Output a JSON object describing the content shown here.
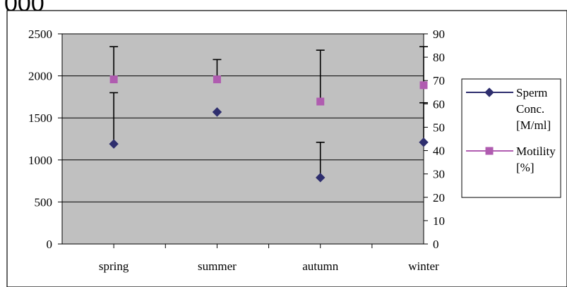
{
  "header_fragment": "000",
  "chart_data": {
    "type": "line",
    "categories": [
      "spring",
      "summer",
      "autumn",
      "winter"
    ],
    "series": [
      {
        "name": "Sperm Conc. [M/ml]",
        "legend_lines": [
          "Sperm",
          "Conc.",
          "[M/ml]"
        ],
        "axis": "left",
        "color": "#2e2e6e",
        "marker": "diamond",
        "values": [
          1190,
          1570,
          790,
          1210
        ],
        "error_upper": [
          1800,
          null,
          1210,
          1680
        ]
      },
      {
        "name": "Motility [%]",
        "legend_lines": [
          "Motility",
          "[%]"
        ],
        "axis": "right",
        "color": "#b05cb0",
        "marker": "square",
        "values": [
          70.5,
          70.5,
          61,
          68
        ],
        "error_upper": [
          84.5,
          79,
          83,
          84.5
        ]
      }
    ],
    "y_left": {
      "min": 0,
      "max": 2500,
      "ticks": [
        0,
        500,
        1000,
        1500,
        2000,
        2500
      ]
    },
    "y_right": {
      "min": 0,
      "max": 90,
      "ticks": [
        0,
        10,
        20,
        30,
        40,
        50,
        60,
        70,
        80,
        90
      ]
    },
    "gridlines": [
      500,
      1000,
      1500,
      2000
    ],
    "plot_background": "#c0c0c0",
    "legend_position": "right",
    "title": "",
    "xlabel": "",
    "ylabel": ""
  }
}
